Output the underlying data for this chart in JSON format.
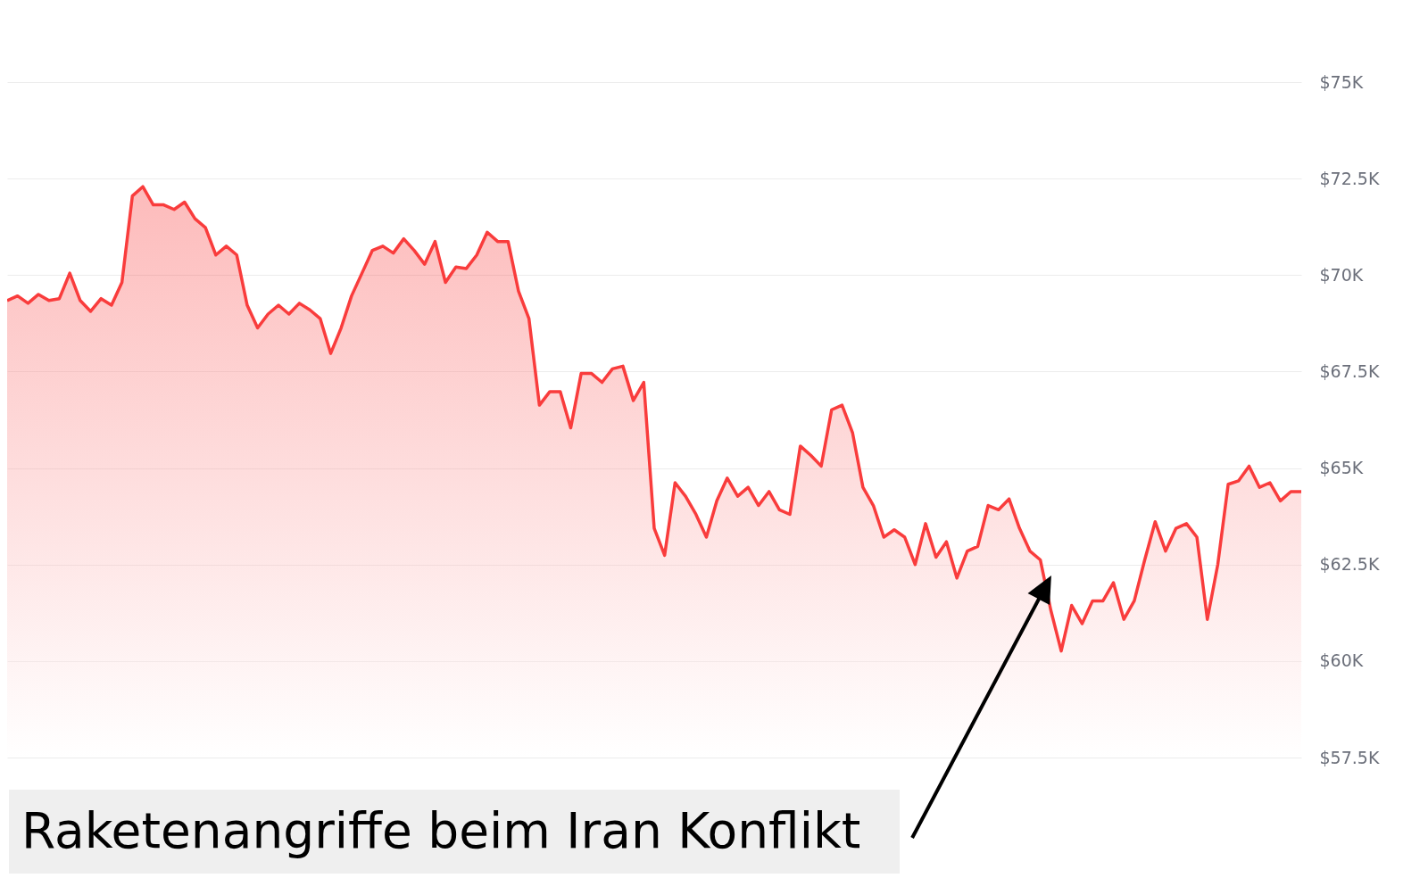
{
  "chart_data": {
    "type": "area",
    "categories": [
      null,
      null,
      null,
      null,
      null,
      null,
      null,
      null,
      null,
      null,
      null,
      null,
      null,
      null,
      null,
      null,
      null,
      null,
      null,
      null,
      null,
      null,
      null,
      null,
      null,
      null,
      null,
      null,
      null,
      null,
      null,
      null,
      null,
      null,
      null,
      null,
      null,
      null,
      null,
      null,
      null,
      null,
      null,
      null,
      null,
      null,
      null,
      null,
      null,
      null,
      null,
      null,
      null,
      null,
      null,
      null,
      null,
      null,
      null,
      null,
      null,
      null,
      null,
      null,
      null,
      null,
      null,
      null,
      null,
      null,
      null,
      null,
      null,
      null,
      null,
      null,
      null,
      null,
      null,
      null,
      null,
      null,
      null,
      null,
      null,
      null,
      null,
      null,
      null,
      null,
      null,
      null,
      null,
      null,
      null,
      null,
      null,
      null,
      null,
      null,
      null,
      null,
      null,
      null,
      null,
      null,
      null,
      null,
      null,
      null,
      null,
      null,
      null,
      null,
      null,
      null,
      null,
      null,
      null,
      null,
      null,
      null,
      null,
      null,
      null
    ],
    "series": [
      {
        "color": "#f93c3c",
        "values": [
          69.34,
          69.46,
          69.27,
          69.5,
          69.34,
          69.39,
          70.05,
          69.34,
          69.06,
          69.39,
          69.22,
          69.81,
          72.05,
          72.29,
          71.82,
          71.82,
          71.7,
          71.89,
          71.46,
          71.23,
          70.52,
          70.75,
          70.52,
          69.22,
          68.63,
          68.99,
          69.22,
          68.99,
          69.27,
          69.1,
          68.87,
          67.97,
          68.63,
          69.46,
          70.05,
          70.64,
          70.75,
          70.57,
          70.94,
          70.64,
          70.28,
          70.87,
          69.81,
          70.21,
          70.17,
          70.52,
          71.11,
          70.87,
          70.87,
          69.58,
          68.87,
          66.63,
          66.98,
          66.98,
          66.04,
          67.45,
          67.45,
          67.22,
          67.57,
          67.64,
          66.75,
          67.22,
          63.44,
          62.74,
          64.62,
          64.27,
          63.8,
          63.21,
          64.15,
          64.74,
          64.27,
          64.5,
          64.03,
          64.39,
          63.92,
          63.8,
          65.57,
          65.33,
          65.05,
          66.51,
          66.63,
          65.92,
          64.5,
          64.03,
          63.21,
          63.4,
          63.21,
          62.5,
          63.56,
          62.69,
          63.09,
          62.15,
          62.85,
          62.97,
          64.03,
          63.92,
          64.2,
          63.44,
          62.85,
          62.62,
          61.32,
          60.26,
          61.44,
          60.97,
          61.56,
          61.56,
          62.03,
          61.08,
          61.56,
          62.62,
          63.61,
          62.85,
          63.44,
          63.56,
          63.21,
          61.08,
          62.5,
          64.58,
          64.67,
          65.05,
          64.5,
          64.62,
          64.15,
          64.39,
          64.39
        ]
      }
    ],
    "ylim": [
      57.5,
      75
    ],
    "yticks": [
      {
        "value": 57.5,
        "label": "$57.5K"
      },
      {
        "value": 60,
        "label": "$60K"
      },
      {
        "value": 62.5,
        "label": "$62.5K"
      },
      {
        "value": 65,
        "label": "$65K"
      },
      {
        "value": 67.5,
        "label": "$67.5K"
      },
      {
        "value": 70,
        "label": "$70K"
      },
      {
        "value": 72.5,
        "label": "$72.5K"
      },
      {
        "value": 75,
        "label": "$75K"
      }
    ],
    "tick_labels": "y",
    "grid": "y",
    "annotations": [
      "Raketenangriffe beim Iran Konflikt"
    ]
  }
}
